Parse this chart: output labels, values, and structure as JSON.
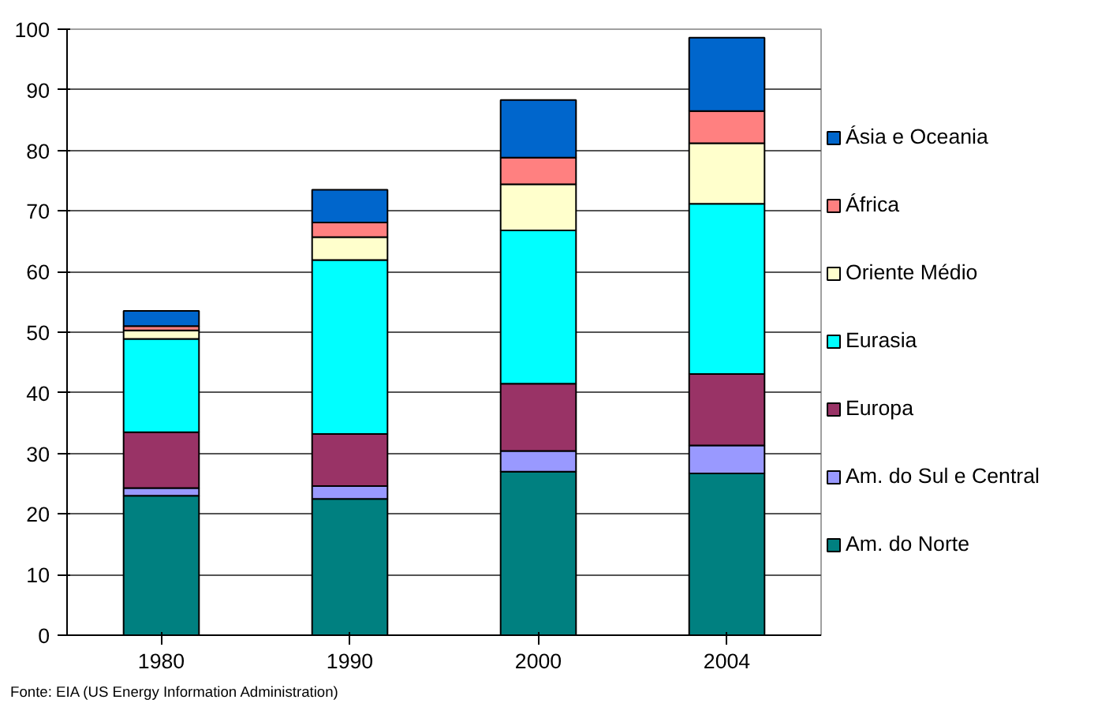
{
  "chart_data": {
    "type": "bar",
    "stacked": true,
    "categories": [
      "1980",
      "1990",
      "2000",
      "2004"
    ],
    "series": [
      {
        "name": "Am. do Norte",
        "color": "#008080",
        "values": [
          23,
          22.5,
          27,
          26.7
        ]
      },
      {
        "name": "Am. do Sul e Central",
        "color": "#9999ff",
        "values": [
          1.3,
          2.1,
          3.4,
          4.6
        ]
      },
      {
        "name": "Europa",
        "color": "#993366",
        "values": [
          9.2,
          8.6,
          11.1,
          11.8
        ]
      },
      {
        "name": "Eurasia",
        "color": "#00ffff",
        "values": [
          15.4,
          28.7,
          25.3,
          28.1
        ]
      },
      {
        "name": "Oriente Médio",
        "color": "#ffffcc",
        "values": [
          1.4,
          3.8,
          7.6,
          10
        ]
      },
      {
        "name": "África",
        "color": "#ff8080",
        "values": [
          0.7,
          2.4,
          4.4,
          5.3
        ]
      },
      {
        "name": "Ásia e Oceania",
        "color": "#0066cc",
        "values": [
          2.5,
          5.4,
          9.5,
          12.1
        ]
      }
    ],
    "ylim": [
      0,
      100
    ],
    "yticks": [
      0,
      10,
      20,
      30,
      40,
      50,
      60,
      70,
      80,
      90,
      100
    ],
    "grid": "y",
    "legend": "right",
    "annotations": [
      "Fonte: EIA (US Energy Information Administration)"
    ]
  }
}
